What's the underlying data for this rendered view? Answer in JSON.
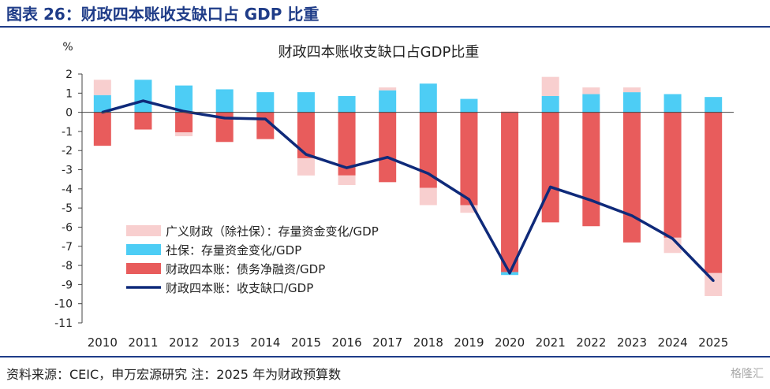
{
  "figure": {
    "title": "图表 26：财政四本账收支缺口占 GDP 比重",
    "source": "资料来源：CEIC，申万宏源研究 注：2025 年为财政预算数",
    "watermark": "格隆汇"
  },
  "chart_data": {
    "type": "bar",
    "title": "财政四本账收支缺口占GDP比重",
    "ylabel": "%",
    "ylim": [
      -11,
      2
    ],
    "yticks": [
      2,
      1,
      0,
      -1,
      -2,
      -3,
      -4,
      -5,
      -6,
      -7,
      -8,
      -9,
      -10,
      -11
    ],
    "categories": [
      "2010",
      "2011",
      "2012",
      "2013",
      "2014",
      "2015",
      "2016",
      "2017",
      "2018",
      "2019",
      "2020",
      "2021",
      "2022",
      "2023",
      "2024",
      "2025"
    ],
    "legend_position": "bottom-left",
    "grid": false,
    "series": [
      {
        "name": "广义财政（除社保）：存量资金变化/GDP",
        "kind": "stacked-bar",
        "color": "#f8cfcf",
        "values": [
          0.8,
          0,
          -0.2,
          0,
          0,
          -0.9,
          -0.5,
          0.15,
          -0.9,
          -0.4,
          0.05,
          1.0,
          0.35,
          0.25,
          -0.8,
          -1.2
        ]
      },
      {
        "name": "社保：存量资金变化/GDP",
        "kind": "stacked-bar",
        "color": "#4dcdf5",
        "values": [
          0.9,
          1.7,
          1.4,
          1.2,
          1.05,
          1.05,
          0.85,
          1.15,
          1.5,
          0.7,
          -0.15,
          0.85,
          0.95,
          1.05,
          0.95,
          0.8
        ]
      },
      {
        "name": "财政四本账：债务净融资/GDP",
        "kind": "stacked-bar",
        "color": "#e85c5c",
        "values": [
          -1.75,
          -0.9,
          -1.05,
          -1.55,
          -1.4,
          -2.4,
          -3.3,
          -3.65,
          -3.95,
          -4.85,
          -8.35,
          -5.75,
          -5.95,
          -6.8,
          -6.55,
          -8.4
        ]
      },
      {
        "name": "财政四本账：收支缺口/GDP",
        "kind": "line",
        "color": "#0f2a7a",
        "values": [
          0.0,
          0.6,
          0.05,
          -0.3,
          -0.35,
          -2.2,
          -2.9,
          -2.35,
          -3.2,
          -4.55,
          -8.4,
          -3.9,
          -4.6,
          -5.4,
          -6.6,
          -8.8
        ]
      }
    ]
  }
}
